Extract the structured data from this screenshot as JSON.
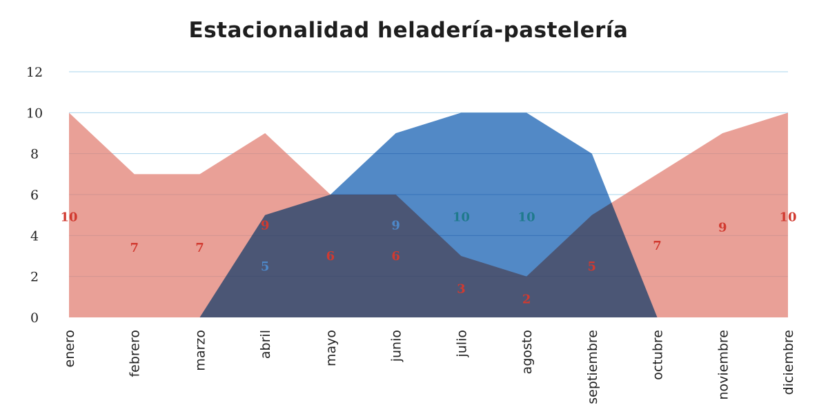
{
  "chart_data": {
    "type": "area",
    "title": "Estacionalidad heladería-pastelería",
    "categories": [
      "enero",
      "febrero",
      "marzo",
      "abril",
      "mayo",
      "junio",
      "julio",
      "agosto",
      "septiembre",
      "octubre",
      "noviembre",
      "diciembre"
    ],
    "ylim": [
      0,
      12
    ],
    "yticks": [
      0,
      2,
      4,
      6,
      8,
      10,
      12
    ],
    "grid": true,
    "legend": "none",
    "series": [
      {
        "values": [
          10,
          7,
          7,
          9,
          6,
          6,
          3,
          2,
          5,
          7,
          9,
          10
        ],
        "color": "#e07b6f",
        "label_color": "#d13a30"
      },
      {
        "values": [
          null,
          null,
          0,
          5,
          6,
          9,
          10,
          10,
          8,
          0,
          null,
          null
        ],
        "color": "#3f7cc0",
        "label_color": "#4d88c9"
      }
    ],
    "data_labels": [
      {
        "text": "10",
        "category": "enero",
        "y": 4.9,
        "color": "#d13a30"
      },
      {
        "text": "7",
        "category": "febrero",
        "y": 3.4,
        "color": "#d13a30"
      },
      {
        "text": "7",
        "category": "marzo",
        "y": 3.4,
        "color": "#d13a30"
      },
      {
        "text": "9",
        "category": "abril",
        "y": 4.5,
        "color": "#d13a30"
      },
      {
        "text": "5",
        "category": "abril",
        "y": 2.5,
        "color": "#4d88c9"
      },
      {
        "text": "6",
        "category": "mayo",
        "y": 3.0,
        "color": "#d13a30"
      },
      {
        "text": "9",
        "category": "junio",
        "y": 4.5,
        "color": "#4d88c9"
      },
      {
        "text": "6",
        "category": "junio",
        "y": 3.0,
        "color": "#d13a30"
      },
      {
        "text": "10",
        "category": "julio",
        "y": 4.9,
        "color": "#1f7a8c"
      },
      {
        "text": "3",
        "category": "julio",
        "y": 1.4,
        "color": "#d13a30"
      },
      {
        "text": "10",
        "category": "agosto",
        "y": 4.9,
        "color": "#1f7a8c"
      },
      {
        "text": "2",
        "category": "agosto",
        "y": 0.9,
        "color": "#d13a30"
      },
      {
        "text": "5",
        "category": "septiembre",
        "y": 2.5,
        "color": "#d13a30"
      },
      {
        "text": "7",
        "category": "octubre",
        "y": 3.5,
        "color": "#d13a30"
      },
      {
        "text": "9",
        "category": "noviembre",
        "y": 4.4,
        "color": "#d13a30"
      },
      {
        "text": "10",
        "category": "diciembre",
        "y": 4.9,
        "color": "#d13a30"
      }
    ]
  }
}
